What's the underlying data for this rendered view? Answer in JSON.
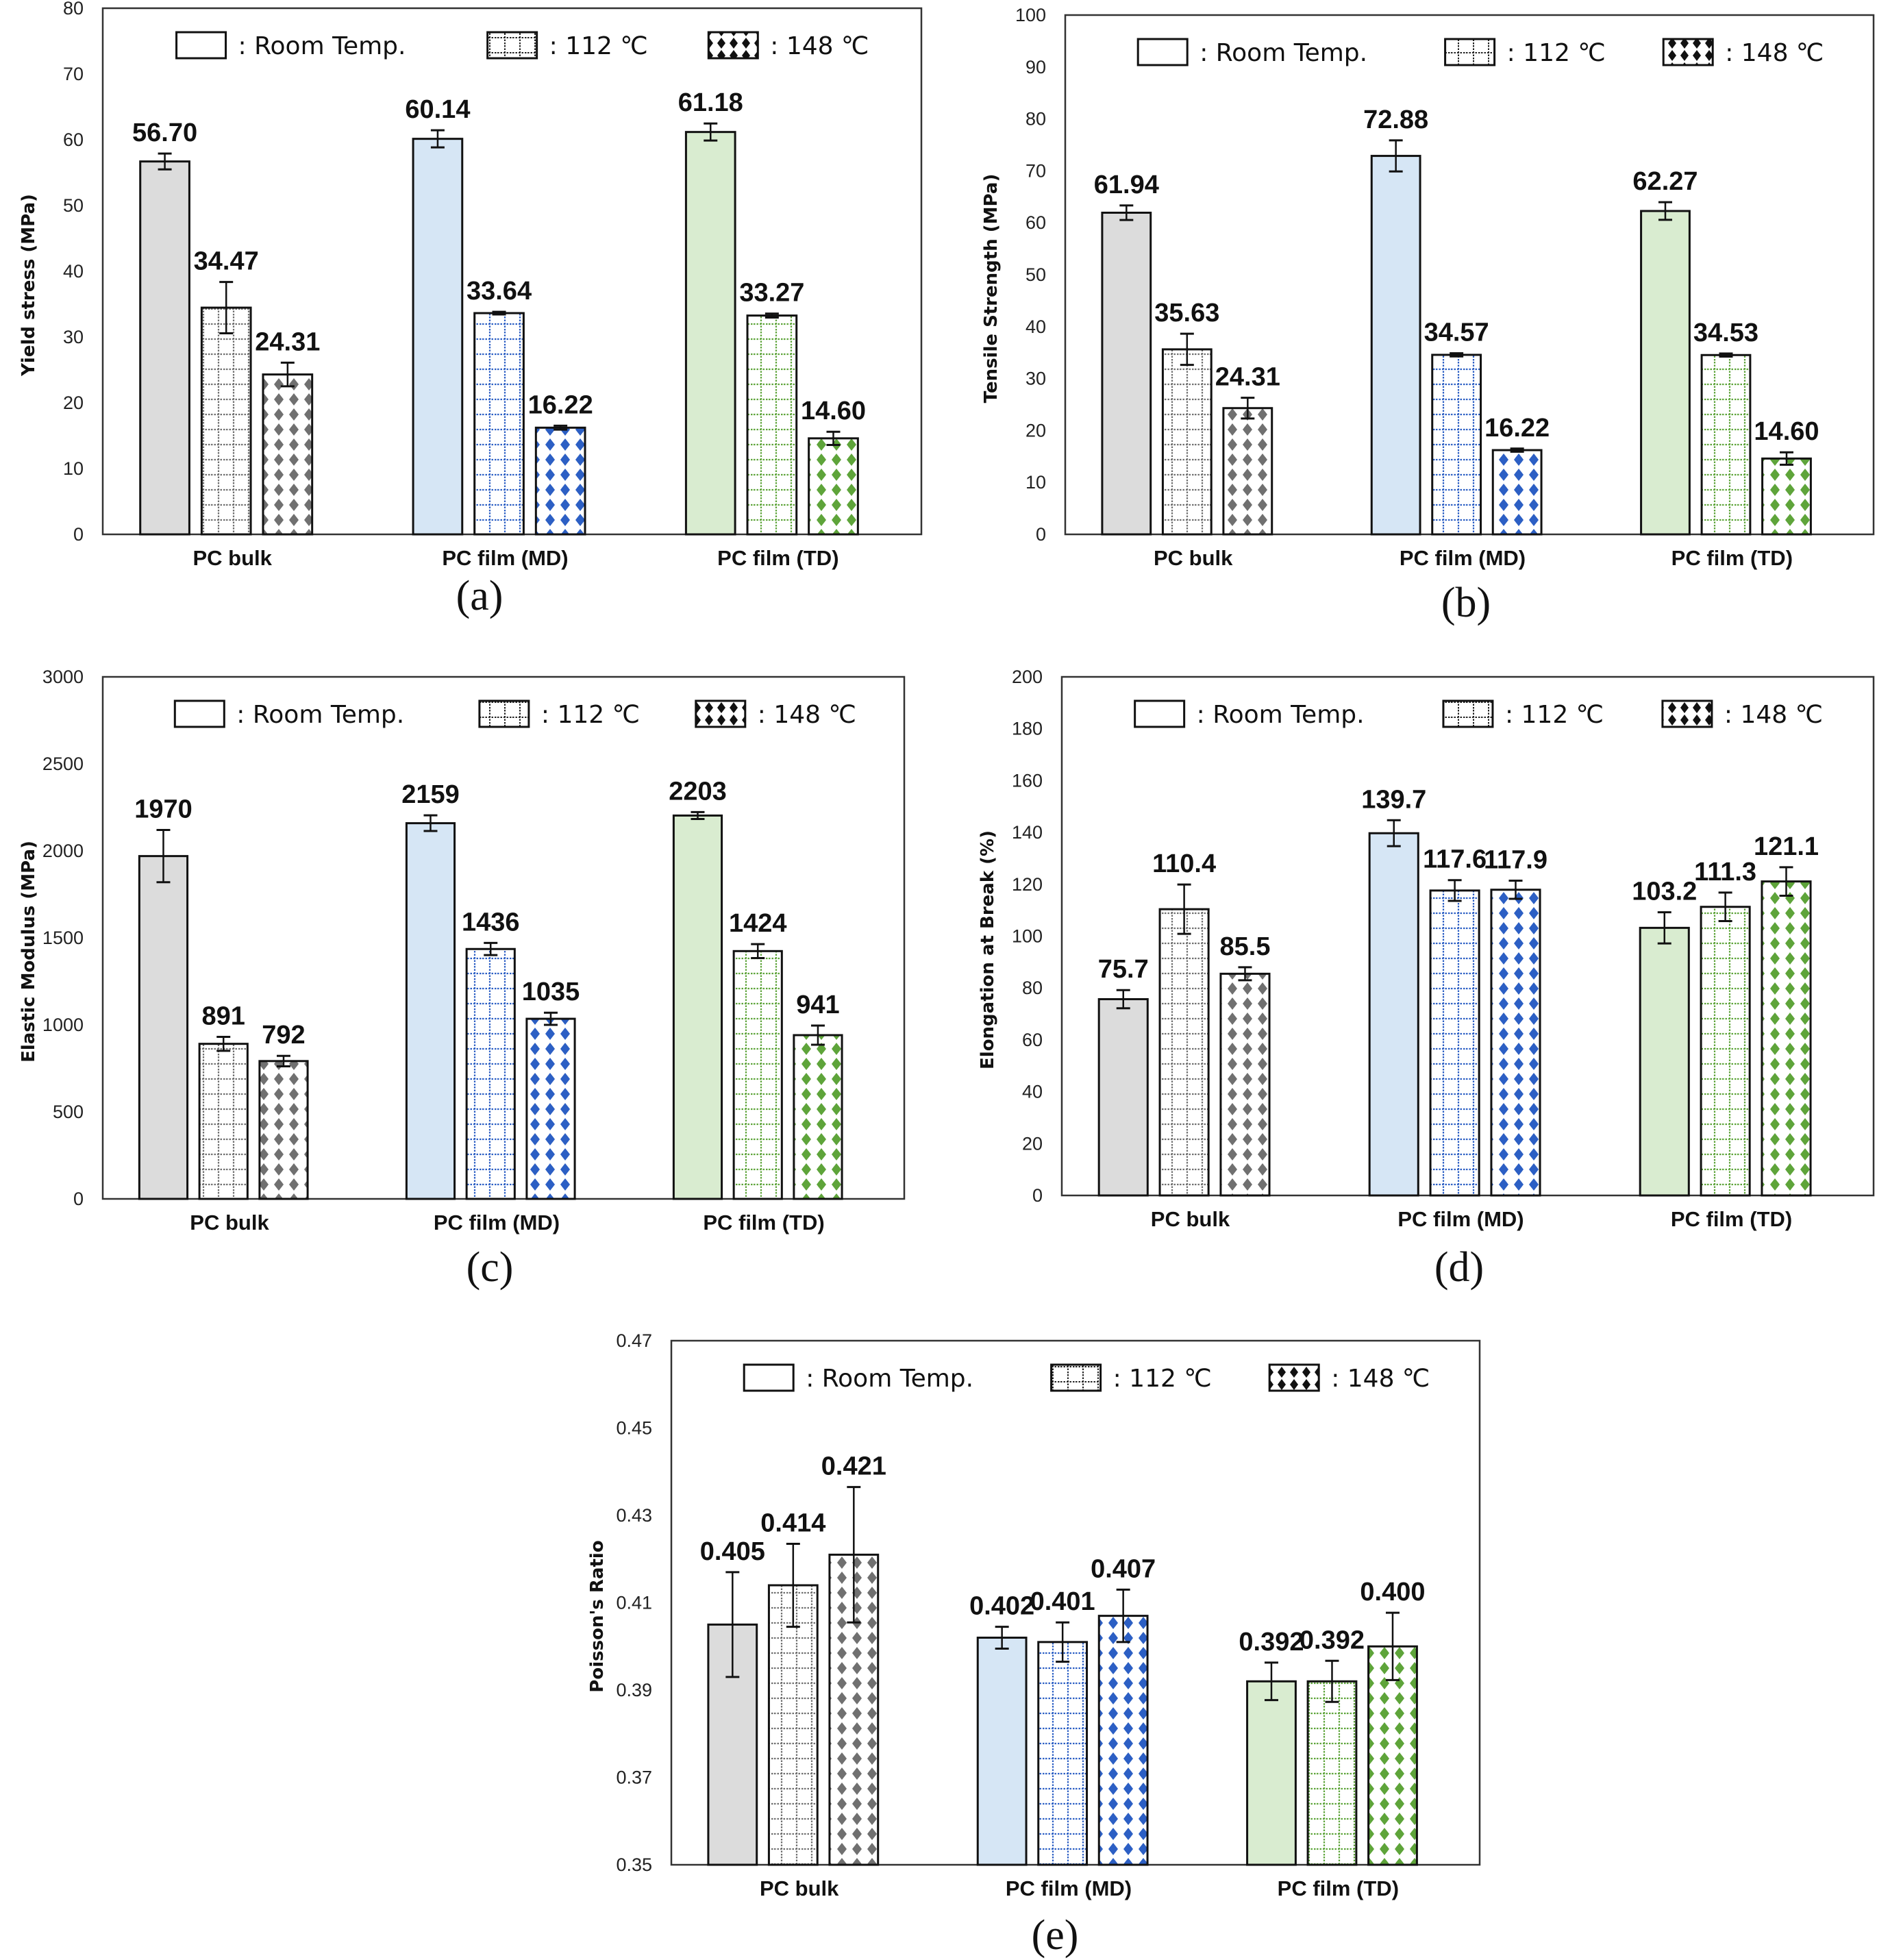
{
  "legend": [
    {
      "label": ": Room Temp.",
      "pattern": "solid"
    },
    {
      "label": ": 112 ℃",
      "pattern": "grid"
    },
    {
      "label": ": 148 ℃",
      "pattern": "diamond"
    }
  ],
  "group_colors": {
    "PC bulk": {
      "fill": "#dcdcdc",
      "pattern": "#707070"
    },
    "PC film (MD)": {
      "fill": "#d6e6f5",
      "pattern": "#2c5fc4"
    },
    "PC film (TD)": {
      "fill": "#d9ecd0",
      "pattern": "#5ea43a"
    }
  },
  "chart_data": [
    {
      "id": "a",
      "caption": "(a)",
      "type": "bar",
      "title": "",
      "xlabel": "",
      "ylabel": "Yield stress (MPa)",
      "ylim": [
        0,
        80
      ],
      "yticks": [
        0,
        10,
        20,
        30,
        40,
        50,
        60,
        70,
        80
      ],
      "ytick_decimals": 0,
      "categories": [
        "PC bulk",
        "PC film (MD)",
        "PC film (TD)"
      ],
      "series": [
        {
          "name": "Room Temp.",
          "values": [
            56.7,
            60.14,
            61.18
          ],
          "errors": [
            1.2,
            1.3,
            1.3
          ],
          "labels": [
            "56.70",
            "60.14",
            "61.18"
          ]
        },
        {
          "name": "112 ℃",
          "values": [
            34.47,
            33.64,
            33.27
          ],
          "errors": [
            3.9,
            0.2,
            0.3
          ],
          "labels": [
            "34.47",
            "33.64",
            "33.27"
          ]
        },
        {
          "name": "148 ℃",
          "values": [
            24.31,
            16.22,
            14.6
          ],
          "errors": [
            1.8,
            0.3,
            1.0
          ],
          "labels": [
            "24.31",
            "16.22",
            "14.60"
          ]
        }
      ],
      "grid": false,
      "legend_position": "top"
    },
    {
      "id": "b",
      "caption": "(b)",
      "type": "bar",
      "title": "",
      "xlabel": "",
      "ylabel": "Tensile Strength (MPa)",
      "ylim": [
        0,
        100
      ],
      "yticks": [
        0,
        10,
        20,
        30,
        40,
        50,
        60,
        70,
        80,
        90,
        100
      ],
      "ytick_decimals": 0,
      "categories": [
        "PC bulk",
        "PC film (MD)",
        "PC film (TD)"
      ],
      "series": [
        {
          "name": "Room Temp.",
          "values": [
            61.94,
            72.88,
            62.27
          ],
          "errors": [
            1.4,
            3.0,
            1.7
          ],
          "labels": [
            "61.94",
            "72.88",
            "62.27"
          ]
        },
        {
          "name": "112 ℃",
          "values": [
            35.63,
            34.57,
            34.53
          ],
          "errors": [
            3.0,
            0.3,
            0.3
          ],
          "labels": [
            "35.63",
            "34.57",
            "34.53"
          ]
        },
        {
          "name": "148 ℃",
          "values": [
            24.31,
            16.22,
            14.6
          ],
          "errors": [
            2.0,
            0.3,
            1.2
          ],
          "labels": [
            "24.31",
            "16.22",
            "14.60"
          ]
        }
      ],
      "grid": false,
      "legend_position": "top"
    },
    {
      "id": "c",
      "caption": "(c)",
      "type": "bar",
      "title": "",
      "xlabel": "",
      "ylabel": "Elastic Modulus (MPa)",
      "ylim": [
        0,
        3000
      ],
      "yticks": [
        0,
        500,
        1000,
        1500,
        2000,
        2500,
        3000
      ],
      "ytick_decimals": 0,
      "categories": [
        "PC bulk",
        "PC film (MD)",
        "PC film (TD)"
      ],
      "series": [
        {
          "name": "Room Temp.",
          "values": [
            1970,
            2159,
            2203
          ],
          "errors": [
            150,
            45,
            20
          ],
          "labels": [
            "1970",
            "2159",
            "2203"
          ]
        },
        {
          "name": "112 ℃",
          "values": [
            891,
            1436,
            1424
          ],
          "errors": [
            40,
            35,
            40
          ],
          "labels": [
            "891",
            "1436",
            "1424"
          ]
        },
        {
          "name": "148 ℃",
          "values": [
            792,
            1035,
            941
          ],
          "errors": [
            30,
            35,
            55
          ],
          "labels": [
            "792",
            "1035",
            "941"
          ]
        }
      ],
      "grid": false,
      "legend_position": "top"
    },
    {
      "id": "d",
      "caption": "(d)",
      "type": "bar",
      "title": "",
      "xlabel": "",
      "ylabel": "Elongation at Break (%)",
      "ylim": [
        0,
        200
      ],
      "yticks": [
        0,
        20,
        40,
        60,
        80,
        100,
        120,
        140,
        160,
        180,
        200
      ],
      "ytick_decimals": 0,
      "categories": [
        "PC bulk",
        "PC film (MD)",
        "PC film (TD)"
      ],
      "series": [
        {
          "name": "Room Temp.",
          "values": [
            75.7,
            139.7,
            103.2
          ],
          "errors": [
            3.5,
            5.0,
            6.0
          ],
          "labels": [
            "75.7",
            "139.7",
            "103.2"
          ]
        },
        {
          "name": "112 ℃",
          "values": [
            110.4,
            117.6,
            111.3
          ],
          "errors": [
            9.5,
            4.0,
            5.5
          ],
          "labels": [
            "110.4",
            "117.6",
            "111.3"
          ]
        },
        {
          "name": "148 ℃",
          "values": [
            85.5,
            117.9,
            121.1
          ],
          "errors": [
            2.5,
            3.5,
            5.5
          ],
          "labels": [
            "85.5",
            "117.9",
            "121.1"
          ]
        }
      ],
      "grid": false,
      "legend_position": "top"
    },
    {
      "id": "e",
      "caption": "(e)",
      "type": "bar",
      "title": "",
      "xlabel": "",
      "ylabel": "Poisson's Ratio",
      "ylim": [
        0.35,
        0.47
      ],
      "yticks": [
        0.35,
        0.37,
        0.39,
        0.41,
        0.43,
        0.45,
        0.47
      ],
      "ytick_decimals": 2,
      "categories": [
        "PC bulk",
        "PC film (MD)",
        "PC film (TD)"
      ],
      "series": [
        {
          "name": "Room Temp.",
          "values": [
            0.405,
            0.402,
            0.392
          ],
          "errors": [
            0.012,
            0.0025,
            0.0043
          ],
          "labels": [
            "0.405",
            "0.402",
            "0.392"
          ]
        },
        {
          "name": "112 ℃",
          "values": [
            0.414,
            0.401,
            0.392
          ],
          "errors": [
            0.0095,
            0.0045,
            0.0047
          ],
          "labels": [
            "0.414",
            "0.401",
            "0.392"
          ]
        },
        {
          "name": "148 ℃",
          "values": [
            0.421,
            0.407,
            0.4
          ],
          "errors": [
            0.0155,
            0.006,
            0.0077
          ],
          "labels": [
            "0.421",
            "0.407",
            "0.400"
          ]
        }
      ],
      "grid": false,
      "legend_position": "top"
    }
  ]
}
